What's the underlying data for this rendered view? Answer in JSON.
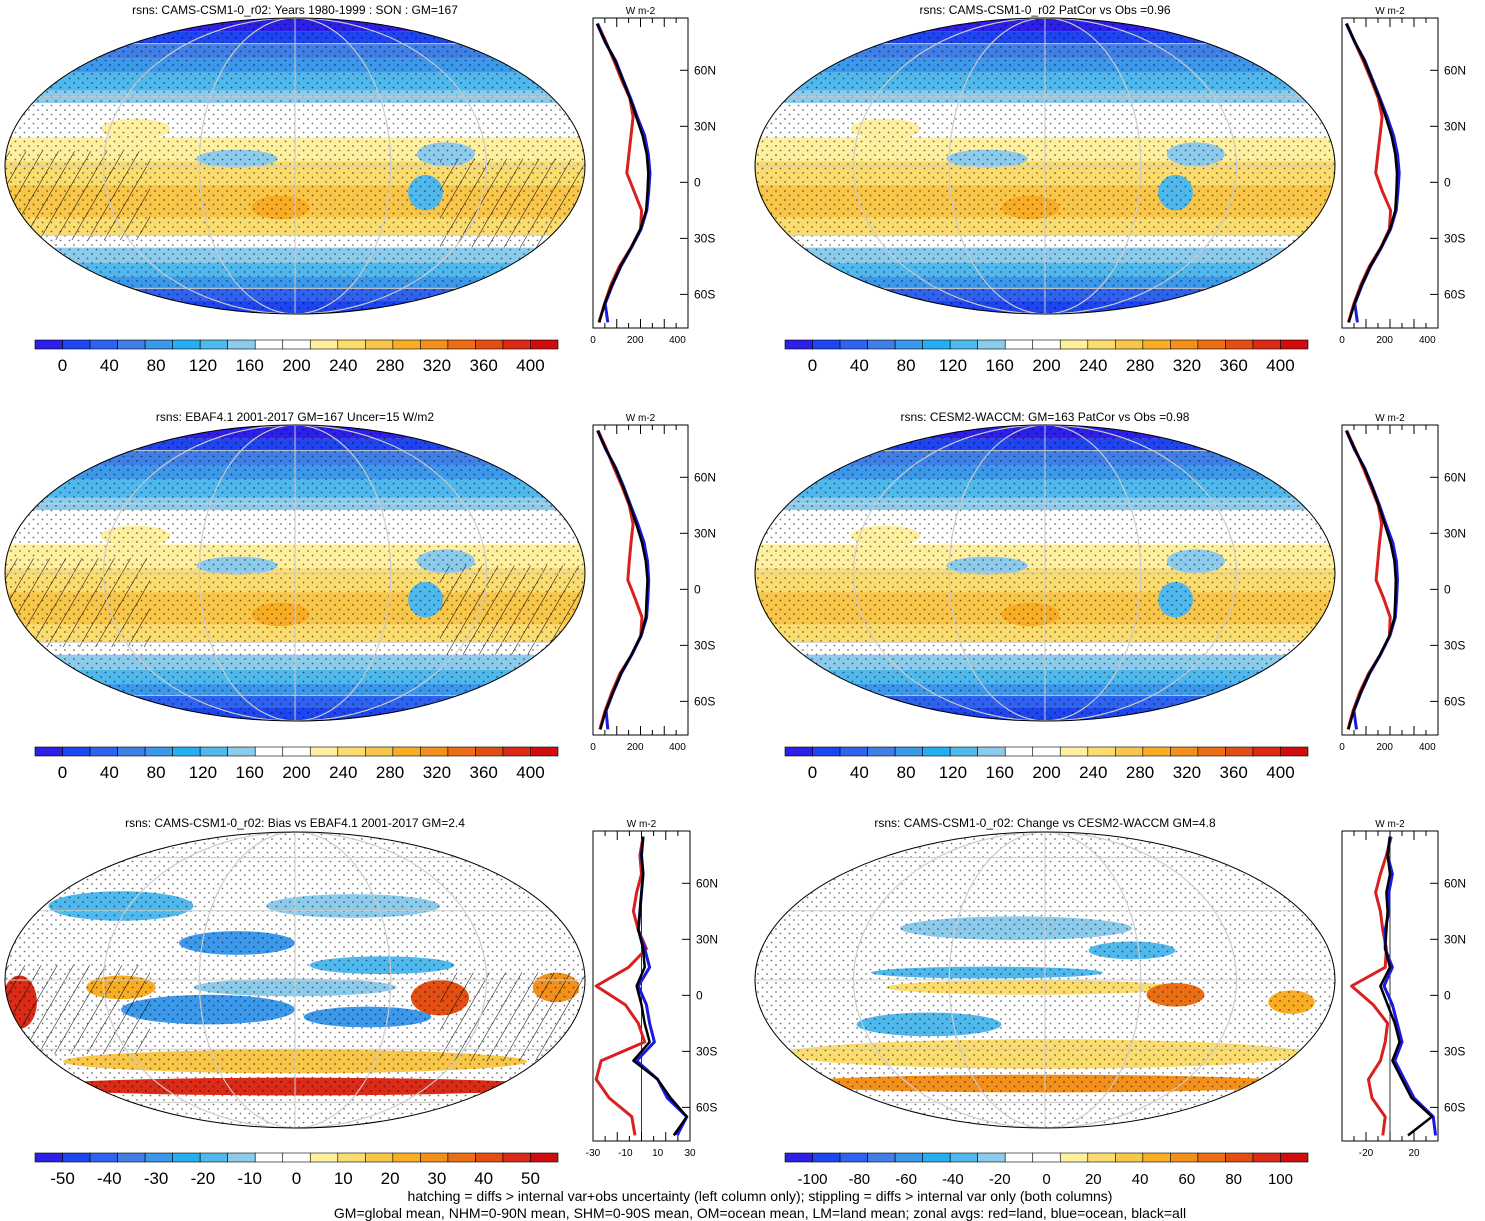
{
  "colors": {
    "cmap_abs": [
      "#2b1fe8",
      "#1e45f0",
      "#2e63f0",
      "#3f7fe6",
      "#3c98ea",
      "#25aef2",
      "#4fb9ee",
      "#8ccbeb",
      "#ffffff",
      "#ffffff",
      "#fff0a0",
      "#fbdc6e",
      "#f8c648",
      "#f8ad25",
      "#f3901b",
      "#ec6e14",
      "#e34e12",
      "#db2a16",
      "#d10c0c"
    ],
    "cmap_diff": [
      "#2b1fe8",
      "#1e45f0",
      "#2e63f0",
      "#3f7fe6",
      "#3c98ea",
      "#25aef2",
      "#4fb9ee",
      "#8ccbeb",
      "#ffffff",
      "#ffffff",
      "#fff0a0",
      "#fbdc6e",
      "#f8c648",
      "#f8ad25",
      "#f3901b",
      "#ec6e14",
      "#e34e12",
      "#db2a16",
      "#d10c0c"
    ],
    "land": "#d92020",
    "ocean": "#1a1adf",
    "all": "#000000"
  },
  "chart_data": [
    {
      "type": "heatmap",
      "title": "rsns: CAMS-CSM1-0_r02: Years 1980-1999 : SON : GM=167",
      "colorbar_labels": [
        "0",
        "40",
        "80",
        "120",
        "160",
        "200",
        "240",
        "280",
        "320",
        "360",
        "400"
      ],
      "zonal_xticks": [
        "0",
        "200",
        "400"
      ],
      "zonal_xlim": [
        0,
        450
      ],
      "zonal_units": "W m-2",
      "lat_ticks": [
        "60N",
        "30N",
        "0",
        "30S",
        "60S"
      ],
      "lat": [
        85,
        75,
        65,
        55,
        45,
        35,
        25,
        15,
        5,
        -5,
        -15,
        -25,
        -35,
        -45,
        -55,
        -65,
        -75
      ],
      "zonal": {
        "all": [
          20,
          60,
          105,
          140,
          175,
          205,
          235,
          255,
          262,
          258,
          252,
          225,
          180,
          130,
          90,
          55,
          30
        ],
        "land": [
          22,
          62,
          100,
          135,
          175,
          190,
          180,
          170,
          160,
          195,
          230,
          225,
          180,
          125,
          85,
          55,
          28
        ],
        "ocean": [
          20,
          58,
          108,
          142,
          178,
          210,
          245,
          262,
          270,
          264,
          255,
          228,
          182,
          132,
          92,
          58,
          70
        ]
      }
    },
    {
      "type": "heatmap",
      "title": "rsns: CAMS-CSM1-0_r02 PatCor vs Obs =0.96",
      "colorbar_labels": [
        "0",
        "40",
        "80",
        "120",
        "160",
        "200",
        "240",
        "280",
        "320",
        "360",
        "400"
      ],
      "zonal_xticks": [
        "0",
        "200",
        "400"
      ],
      "zonal_xlim": [
        0,
        450
      ],
      "zonal_units": "W m-2",
      "lat_ticks": [
        "60N",
        "30N",
        "0",
        "30S",
        "60S"
      ],
      "lat": [
        85,
        75,
        65,
        55,
        45,
        35,
        25,
        15,
        5,
        -5,
        -15,
        -25,
        -35,
        -45,
        -55,
        -65,
        -75
      ],
      "zonal": {
        "all": [
          20,
          62,
          105,
          140,
          175,
          205,
          232,
          250,
          258,
          255,
          250,
          225,
          182,
          132,
          92,
          58,
          32
        ],
        "land": [
          22,
          60,
          100,
          136,
          170,
          188,
          178,
          168,
          158,
          190,
          228,
          222,
          182,
          128,
          88,
          56,
          30
        ],
        "ocean": [
          20,
          60,
          108,
          143,
          178,
          212,
          242,
          260,
          268,
          262,
          254,
          228,
          184,
          134,
          94,
          60,
          72
        ]
      }
    },
    {
      "type": "heatmap",
      "title": "rsns: EBAF4.1 2001-2017 GM=167 Uncer=15 W/m2",
      "colorbar_labels": [
        "0",
        "40",
        "80",
        "120",
        "160",
        "200",
        "240",
        "280",
        "320",
        "360",
        "400"
      ],
      "zonal_xticks": [
        "0",
        "200",
        "400"
      ],
      "zonal_xlim": [
        0,
        450
      ],
      "zonal_units": "W m-2",
      "lat_ticks": [
        "60N",
        "30N",
        "0",
        "30S",
        "60S"
      ],
      "lat": [
        85,
        75,
        65,
        55,
        45,
        35,
        25,
        15,
        5,
        -5,
        -15,
        -25,
        -35,
        -45,
        -55,
        -65,
        -75
      ],
      "zonal": {
        "all": [
          22,
          62,
          106,
          142,
          175,
          205,
          232,
          250,
          258,
          254,
          250,
          226,
          182,
          132,
          95,
          60,
          35
        ],
        "land": [
          24,
          64,
          100,
          138,
          172,
          190,
          180,
          172,
          165,
          200,
          232,
          226,
          184,
          128,
          90,
          58,
          32
        ],
        "ocean": [
          22,
          60,
          108,
          145,
          178,
          212,
          242,
          258,
          264,
          260,
          254,
          228,
          184,
          134,
          96,
          62,
          70
        ]
      }
    },
    {
      "type": "heatmap",
      "title": "rsns: CESM2-WACCM: GM=163 PatCor vs Obs =0.98",
      "colorbar_labels": [
        "0",
        "40",
        "80",
        "120",
        "160",
        "200",
        "240",
        "280",
        "320",
        "360",
        "400"
      ],
      "zonal_xticks": [
        "0",
        "200",
        "400"
      ],
      "zonal_xlim": [
        0,
        450
      ],
      "zonal_units": "W m-2",
      "lat_ticks": [
        "60N",
        "30N",
        "0",
        "30S",
        "60S"
      ],
      "lat": [
        85,
        75,
        65,
        55,
        45,
        35,
        25,
        15,
        5,
        -5,
        -15,
        -25,
        -35,
        -45,
        -55,
        -65,
        -75
      ],
      "zonal": {
        "all": [
          20,
          60,
          104,
          140,
          172,
          200,
          228,
          246,
          252,
          250,
          246,
          222,
          178,
          128,
          88,
          55,
          30
        ],
        "land": [
          22,
          62,
          100,
          135,
          170,
          186,
          176,
          168,
          160,
          196,
          226,
          222,
          180,
          125,
          84,
          52,
          28
        ],
        "ocean": [
          20,
          58,
          106,
          142,
          176,
          206,
          238,
          255,
          260,
          256,
          250,
          224,
          180,
          130,
          90,
          56,
          68
        ]
      }
    },
    {
      "type": "heatmap",
      "title": "rsns: CAMS-CSM1-0_r02: Bias vs EBAF4.1 2001-2017  GM=2.4",
      "colorbar_labels": [
        "-50",
        "-40",
        "-30",
        "-20",
        "-10",
        "0",
        "10",
        "20",
        "30",
        "40",
        "50"
      ],
      "zonal_xticks": [
        "-30",
        "-10",
        "10",
        "30"
      ],
      "zonal_xlim": [
        -30,
        30
      ],
      "zonal_units": "W m-2",
      "lat_ticks": [
        "60N",
        "30N",
        "0",
        "30S",
        "60S"
      ],
      "lat": [
        85,
        75,
        65,
        55,
        45,
        35,
        25,
        15,
        5,
        -5,
        -15,
        -25,
        -35,
        -45,
        -55,
        -65,
        -75
      ],
      "zonal": {
        "all": [
          1,
          0,
          1,
          0,
          -1,
          -2,
          1,
          2,
          -3,
          0,
          2,
          5,
          -5,
          10,
          18,
          28,
          20
        ],
        "land": [
          1,
          -1,
          0,
          -3,
          -5,
          -2,
          3,
          -8,
          -28,
          -10,
          -2,
          2,
          -25,
          -28,
          -20,
          -6,
          -4
        ],
        "ocean": [
          1,
          0,
          1,
          0,
          -1,
          -2,
          2,
          5,
          -2,
          3,
          5,
          8,
          -3,
          10,
          16,
          28,
          22
        ]
      }
    },
    {
      "type": "heatmap",
      "title": "rsns: CAMS-CSM1-0_r02: Change vs CESM2-WACCM GM=4.8",
      "colorbar_labels": [
        "-100",
        "-80",
        "-60",
        "-40",
        "-20",
        "0",
        "20",
        "40",
        "60",
        "80",
        "100"
      ],
      "zonal_xticks": [
        "-20",
        "20"
      ],
      "zonal_xlim": [
        -40,
        40
      ],
      "zonal_units": "W m-2",
      "lat_ticks": [
        "60N",
        "30N",
        "0",
        "30S",
        "60S"
      ],
      "lat": [
        85,
        75,
        65,
        55,
        45,
        35,
        25,
        15,
        5,
        -5,
        -15,
        -25,
        -35,
        -45,
        -55,
        -65,
        -75
      ],
      "zonal": {
        "all": [
          0,
          -2,
          0,
          -3,
          -2,
          -3,
          -4,
          0,
          -8,
          -2,
          4,
          8,
          2,
          10,
          18,
          35,
          15
        ],
        "land": [
          1,
          -3,
          -8,
          -12,
          -8,
          -6,
          -3,
          -4,
          -32,
          -14,
          -2,
          -4,
          -8,
          -18,
          -15,
          -4,
          -6
        ],
        "ocean": [
          0,
          -2,
          2,
          -1,
          -1,
          -4,
          -4,
          2,
          -5,
          2,
          6,
          10,
          4,
          12,
          20,
          36,
          38
        ]
      }
    }
  ],
  "footer": {
    "line1": "hatching = diffs > internal var+obs uncertainty (left column only); stippling = diffs > internal var only (both columns)",
    "line2": "GM=global mean, NHM=0-90N mean, SHM=0-90S mean, OM=ocean mean, LM=land mean; zonal avgs: red=land, blue=ocean, black=all"
  }
}
